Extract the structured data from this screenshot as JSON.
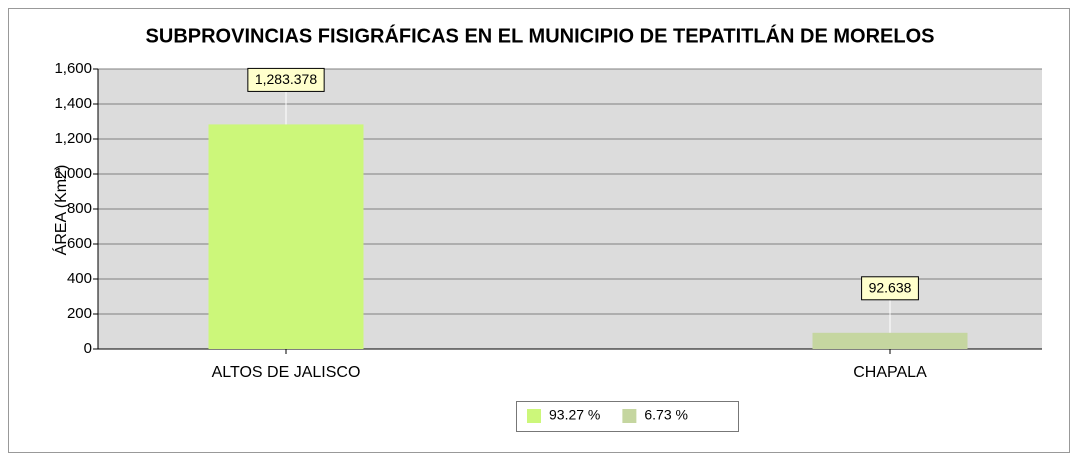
{
  "chart_data": {
    "type": "bar",
    "title": "SUBPROVINCIAS FISIGRÁFICAS EN EL MUNICIPIO DE TEPATITLÁN DE MORELOS",
    "y_label": "ÁREA (Km2)",
    "categories": [
      "ALTOS DE JALISCO",
      "CHAPALA"
    ],
    "values": [
      1283.378,
      92.638
    ],
    "value_labels": [
      "1,283.378",
      "92.638"
    ],
    "colors": [
      "#ccf77a",
      "#c5d6a0"
    ],
    "legend": [
      "93.27 %",
      "6.73 %"
    ],
    "ylim": [
      0,
      1600
    ],
    "yticks": [
      0,
      200,
      400,
      600,
      800,
      {
        "value": 1000,
        "label": "1,000"
      },
      {
        "value": 1200,
        "label": "1,200"
      },
      {
        "value": 1400,
        "label": "1,400"
      },
      {
        "value": 1600,
        "label": "1,600"
      }
    ],
    "grid": true
  }
}
